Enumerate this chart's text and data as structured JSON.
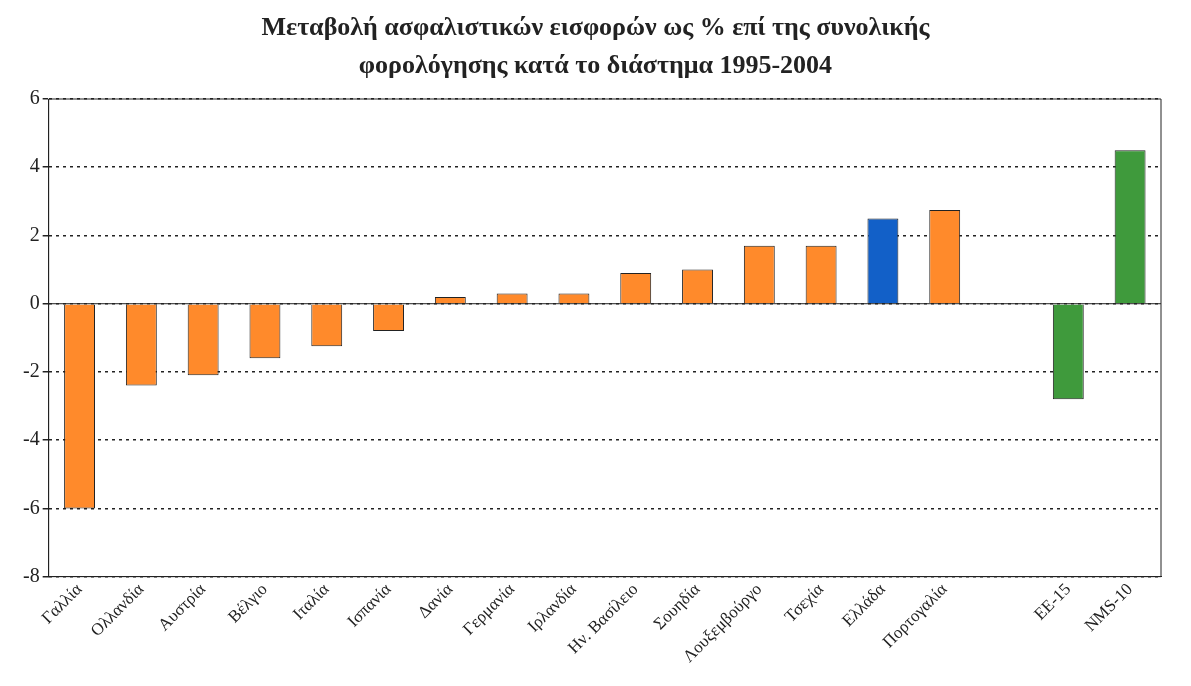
{
  "chart_data": {
    "type": "bar",
    "title": "Μεταβολή ασφαλιστικών εισφορών ως % επί της συνολικής φορολόγησης κατά το διάστημα 1995-2004",
    "categories": [
      "Γαλλία",
      "Ολλανδία",
      "Αυστρία",
      "Βέλγιο",
      "Ιταλία",
      "Ισπανία",
      "Δανία",
      "Γερμανία",
      "Ιρλανδία",
      "Ην. Βασίλειο",
      "Σουηδία",
      "Λουξεμβούργο",
      "Τσεχία",
      "Ελλάδα",
      "Πορτογαλία",
      null,
      "ΕΕ-15",
      "NMS-10"
    ],
    "values": [
      -6.0,
      -2.4,
      -2.1,
      -1.6,
      -1.25,
      -0.8,
      0.2,
      0.3,
      0.3,
      0.9,
      1.0,
      1.7,
      1.7,
      2.5,
      2.75,
      null,
      -2.8,
      4.5
    ],
    "colors": [
      "#ff8a2b",
      "#ff8a2b",
      "#ff8a2b",
      "#ff8a2b",
      "#ff8a2b",
      "#ff8a2b",
      "#ff8a2b",
      "#ff8a2b",
      "#ff8a2b",
      "#ff8a2b",
      "#ff8a2b",
      "#ff8a2b",
      "#ff8a2b",
      "#1260c8",
      "#ff8a2b",
      "#ff8a2b",
      "#3f9a3c",
      "#3f9a3c"
    ],
    "ylim": [
      -8,
      6
    ],
    "yticks": [
      -8,
      -6,
      -4,
      -2,
      0,
      2,
      4,
      6
    ],
    "grid": "y",
    "legend": false
  }
}
